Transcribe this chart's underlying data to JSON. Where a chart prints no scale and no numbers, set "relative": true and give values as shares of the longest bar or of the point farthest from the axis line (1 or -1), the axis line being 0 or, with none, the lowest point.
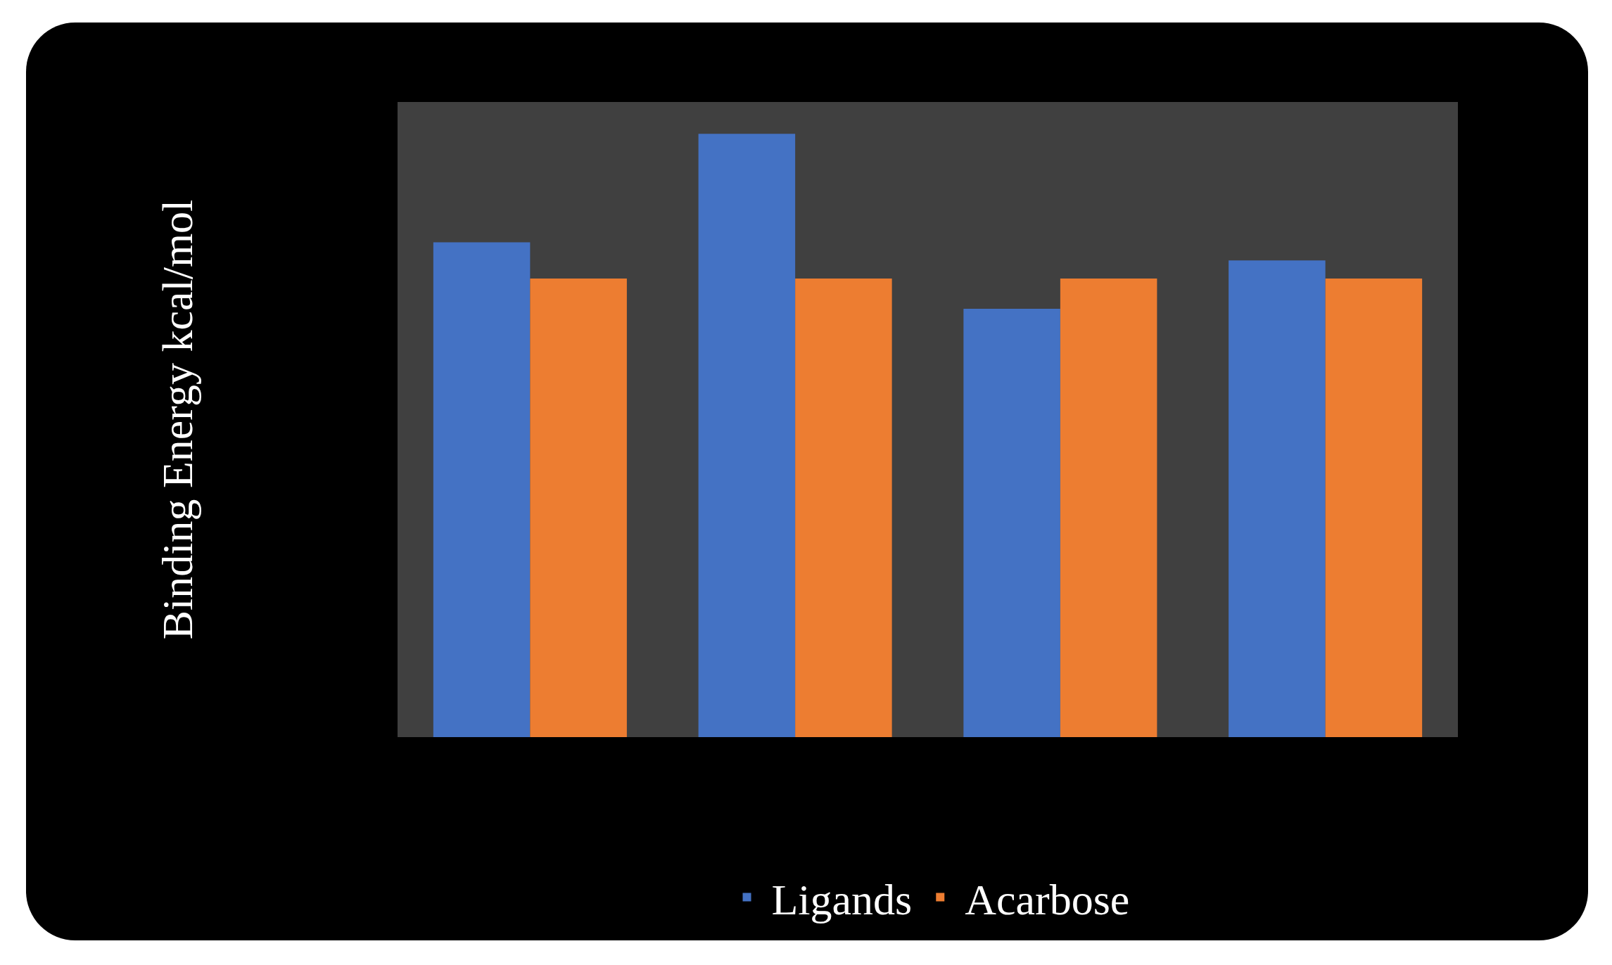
{
  "chart_data": {
    "type": "bar",
    "ylabel": "Binding Energy kcal/mol",
    "categories": [
      null,
      null,
      null,
      null
    ],
    "relative": true,
    "legend": "bottom",
    "series": [
      {
        "name": "Ligands",
        "color": "#4472c4",
        "values": [
          0.82,
          1,
          0.71,
          0.79
        ]
      },
      {
        "name": "Acarbose",
        "color": "#ed7d31",
        "values": [
          0.76,
          0.76,
          0.76,
          0.76
        ]
      }
    ]
  }
}
